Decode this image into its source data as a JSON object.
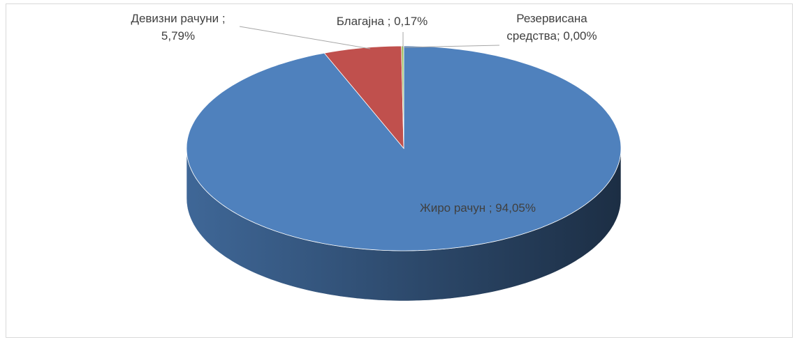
{
  "chart_data": {
    "type": "pie",
    "values": [
      94.05,
      5.79,
      0.17,
      0.0
    ],
    "value_labels": [
      "Жиро рачун ; 94,05%",
      "Девизни рачуни ;\n5,79%",
      "Благајна ; 0,17%",
      "Резервисана\nсредства; 0,00%"
    ],
    "colors": [
      "#4f81bd",
      "#c0504d",
      "#9bbb59",
      "#f4c542"
    ]
  }
}
